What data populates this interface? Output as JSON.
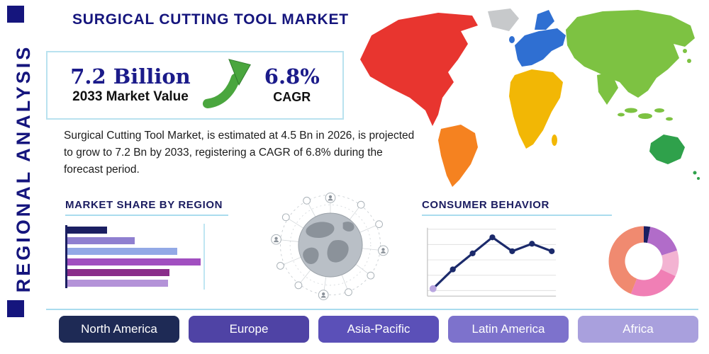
{
  "colors": {
    "navy": "#15157d",
    "accent_line": "#aadcee",
    "arrow_green": "#4aa63e"
  },
  "header": {
    "title": "SURGICAL CUTTING TOOL MARKET",
    "side_label": "REGIONAL ANALYSIS"
  },
  "stats": {
    "market_value": "7.2 Billion",
    "market_value_label": "2033 Market Value",
    "cagr_value": "6.8%",
    "cagr_label": "CAGR",
    "growth_arrow_icon": "growth-arrow-up-right"
  },
  "description": "Surgical Cutting Tool Market, is estimated at 4.5 Bn in 2026, is projected to grow to 7.2 Bn by 2033, registering a CAGR of 6.8% during the forecast period.",
  "sections": {
    "market_share": "MARKET SHARE BY REGION",
    "consumer_behavior": "CONSUMER BEHAVIOR"
  },
  "regions": [
    {
      "label": "North America",
      "color": "#1e2a55"
    },
    {
      "label": "Europe",
      "color": "#4f43a5"
    },
    {
      "label": "Asia-Pacific",
      "color": "#5b50b8"
    },
    {
      "label": "Latin America",
      "color": "#7d72cc"
    },
    {
      "label": "Africa",
      "color": "#a9a0dd"
    }
  ],
  "map": {
    "icon": "world-map",
    "colors": {
      "north_america": "#e8352f",
      "greenland": "#c7c9cb",
      "south_america": "#f58220",
      "europe": "#2f6fd2",
      "africa": "#f2b705",
      "asia": "#7dc242",
      "australia": "#2fa14b"
    }
  },
  "chart_data": [
    {
      "type": "bar",
      "title": "MARKET SHARE BY REGION",
      "orientation": "horizontal",
      "values": [
        29,
        49,
        80,
        97,
        74,
        73
      ],
      "xlim": [
        0,
        100
      ],
      "colors": [
        "#1b1f62",
        "#8f7fd0",
        "#93a9e6",
        "#a14fc0",
        "#8a2d8a",
        "#b493d8"
      ]
    },
    {
      "type": "line",
      "title": "CONSUMER BEHAVIOR",
      "x": [
        1,
        2,
        3,
        4,
        5,
        6,
        7
      ],
      "values": [
        0.7,
        2.5,
        4.0,
        5.5,
        4.2,
        4.9,
        4.2
      ],
      "ylim": [
        0,
        6
      ],
      "grid": "horizontal",
      "line_color": "#1b2a6b",
      "point_color": "#1b2a6b",
      "first_point_color": "#b9a6e0"
    },
    {
      "type": "donut",
      "values": [
        3,
        17,
        12,
        24,
        44
      ],
      "colors": [
        "#1b1f62",
        "#b16cc9",
        "#f3b3d2",
        "#f07fb5",
        "#f08a70"
      ]
    }
  ]
}
